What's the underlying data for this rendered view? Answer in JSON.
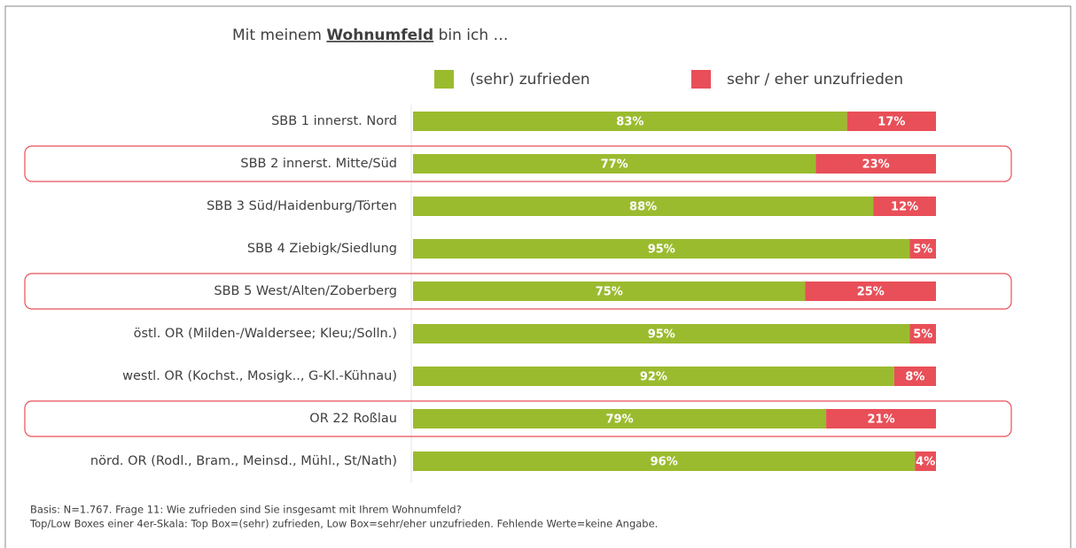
{
  "chart_data": {
    "type": "stacked_barh",
    "title_parts": [
      "Mit meinem ",
      "Wohnumfeld",
      " bin ich …"
    ],
    "categories": [
      "SBB 1 innerst. Nord",
      "SBB 2 innerst. Mitte/Süd",
      "SBB 3 Süd/Haidenburg/Törten",
      "SBB 4 Ziebigk/Siedlung",
      "SBB 5 West/Alten/Zoberberg",
      "östl. OR (Milden-/Waldersee; Kleu;/Solln.)",
      "westl. OR (Kochst., Mosigk.., G-Kl.-Kühnau)",
      "OR 22 Roßlau",
      "nörd. OR (Rodl., Bram., Meinsd., Mühl., St/Nath)"
    ],
    "series": [
      {
        "name": "(sehr) zufrieden",
        "color": "#9bbb2f",
        "values": [
          83,
          77,
          88,
          95,
          75,
          95,
          92,
          79,
          96
        ],
        "value_labels": [
          "83%",
          "77%",
          "88%",
          "95%",
          "75%",
          "95%",
          "92%",
          "79%",
          "96%"
        ]
      },
      {
        "name": "sehr / eher unzufrieden",
        "color": "#e84f58",
        "values": [
          17,
          23,
          12,
          5,
          25,
          5,
          8,
          21,
          4
        ],
        "value_labels": [
          "17%",
          "23%",
          "12%",
          "5%",
          "25%",
          "5%",
          "8%",
          "21%",
          "4%"
        ]
      }
    ],
    "xlim": [
      0,
      100
    ],
    "highlighted": [
      1,
      4,
      7
    ],
    "highlight_color": "#e84f58",
    "footnotes": [
      "Basis: N=1.767. Frage 11: Wie zufrieden sind Sie insgesamt mit Ihrem Wohnumfeld?",
      "Top/Low Boxes einer 4er-Skala: Top Box=(sehr) zufrieden, Low Box=sehr/eher unzufrieden. Fehlende Werte=keine Angabe."
    ]
  }
}
